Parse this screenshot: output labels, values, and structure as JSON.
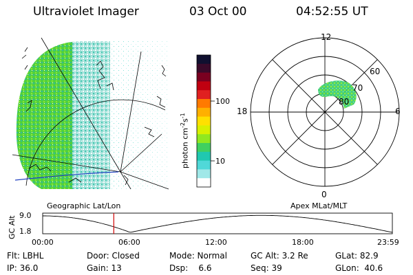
{
  "header": {
    "instrument": "Ultraviolet Imager",
    "date": "03 Oct 00",
    "time": "04:52:55 UT"
  },
  "colorbar": {
    "label_unit": "photon cm",
    "label_exp1": "-2",
    "label_s": "s",
    "label_exp2": "-1",
    "ticks": [
      "100",
      "10"
    ],
    "colors": [
      "#101030",
      "#3a0a2a",
      "#7a0020",
      "#c00010",
      "#e02020",
      "#ff7a00",
      "#ffb000",
      "#ffe000",
      "#d8f000",
      "#90e820",
      "#40d060",
      "#20c8b0",
      "#50d8d8",
      "#a0e8e8",
      "#ffffff"
    ]
  },
  "polar": {
    "mlt_labels": {
      "top": "12",
      "left": "18",
      "right": "6",
      "bottom": "0"
    },
    "lat_labels": [
      "60",
      "70",
      "80"
    ]
  },
  "timeline": {
    "left_title": "Geographic Lat/Lon",
    "right_title": "Apex MLat/MLT",
    "axis_label": "GC Alt",
    "y_ticks": [
      "9.0",
      "1.8"
    ],
    "x_ticks": [
      "00:00",
      "06:00",
      "12:00",
      "18:00",
      "23:59"
    ],
    "marker_hour": 4.88
  },
  "footer": {
    "row1": [
      "Flt: LBHL",
      "Door: Closed",
      "Mode: Normal",
      "GC Alt: 3.2 Re",
      "GLat: 82.9"
    ],
    "row2": [
      "IP: 36.0",
      "Gain: 13",
      "Dsp:    6.6",
      "Seq: 39",
      "GLon:  40.6"
    ]
  }
}
